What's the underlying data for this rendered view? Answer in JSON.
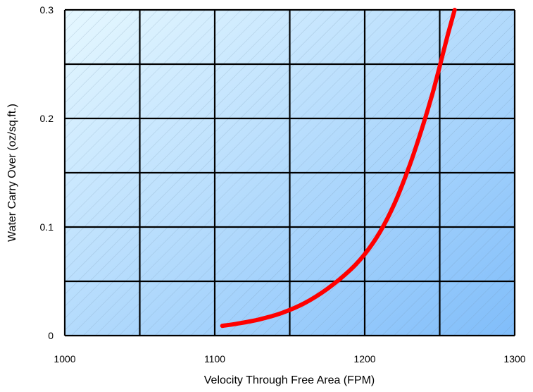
{
  "chart_data": {
    "type": "line",
    "title": "",
    "xlabel": "Velocity Through Free Area (FPM)",
    "ylabel": "Water Carry Over (oz/sq.ft.)",
    "xlim": [
      1000,
      1300
    ],
    "ylim": [
      0,
      0.3
    ],
    "x_ticks": [
      1000,
      1100,
      1200,
      1300
    ],
    "x_tick_labels": [
      "1000",
      "1100",
      "1200",
      "1300"
    ],
    "y_ticks": [
      0,
      0.1,
      0.2,
      0.3
    ],
    "y_tick_labels": [
      "0",
      "0.1",
      "0.2",
      "0.3"
    ],
    "x_grid": [
      1000,
      1050,
      1100,
      1150,
      1200,
      1250,
      1300
    ],
    "y_grid": [
      0,
      0.05,
      0.1,
      0.15,
      0.2,
      0.25,
      0.3
    ],
    "grid": true,
    "legend": "none",
    "colors": {
      "line": "#ff0000",
      "grid": "#000000",
      "background_start": "#e6f8ff",
      "background_end": "#80bdfa",
      "hatch": "#6f8ea8"
    },
    "series": [
      {
        "points": [
          [
            1105,
            0.009
          ],
          [
            1115,
            0.011
          ],
          [
            1130,
            0.015
          ],
          [
            1145,
            0.021
          ],
          [
            1160,
            0.03
          ],
          [
            1175,
            0.043
          ],
          [
            1190,
            0.06
          ],
          [
            1200,
            0.075
          ],
          [
            1210,
            0.095
          ],
          [
            1220,
            0.122
          ],
          [
            1230,
            0.157
          ],
          [
            1238,
            0.19
          ],
          [
            1245,
            0.222
          ],
          [
            1250,
            0.248
          ],
          [
            1255,
            0.275
          ],
          [
            1260,
            0.3
          ]
        ]
      }
    ]
  }
}
